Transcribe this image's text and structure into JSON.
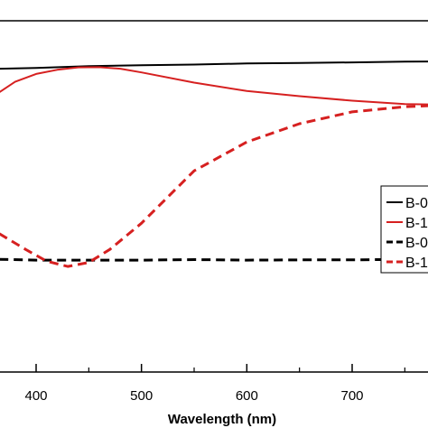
{
  "chart_data": {
    "type": "line",
    "title": "",
    "xlabel": "Wavelength (nm)",
    "ylabel": "",
    "xlim": [
      365,
      842
    ],
    "ylim": [
      0,
      100
    ],
    "x_ticks": [
      400,
      500,
      600,
      700
    ],
    "grid": false,
    "legend_position": "right",
    "series": [
      {
        "name": "B-0",
        "color": "#000000",
        "style": "solid",
        "x": [
          365,
          400,
          450,
          500,
          550,
          600,
          650,
          700,
          750,
          780
        ],
        "y": [
          91,
          91.3,
          92,
          92.3,
          92.6,
          93,
          93.2,
          93.4,
          93.7,
          93.8
        ]
      },
      {
        "name": "B-1",
        "color": "#d62020",
        "style": "solid",
        "x": [
          365,
          380,
          400,
          420,
          440,
          460,
          480,
          500,
          550,
          600,
          650,
          700,
          750,
          780
        ],
        "y": [
          82,
          86,
          89,
          90.6,
          91.5,
          91.6,
          91,
          89.6,
          85.7,
          82.5,
          80.5,
          78.8,
          77.5,
          77.3
        ]
      },
      {
        "name": "B-0",
        "color": "#000000",
        "style": "dashed",
        "x": [
          365,
          400,
          450,
          500,
          550,
          600,
          650,
          700,
          750,
          780
        ],
        "y": [
          18.2,
          17.9,
          17.9,
          17.9,
          18.1,
          17.9,
          18,
          18,
          18.2,
          18.2
        ]
      },
      {
        "name": "B-1",
        "color": "#d62020",
        "style": "dashed",
        "x": [
          365,
          390,
          410,
          430,
          450,
          470,
          500,
          550,
          600,
          650,
          700,
          750,
          780
        ],
        "y": [
          28,
          22,
          17.5,
          15.5,
          17,
          22,
          32,
          52,
          63,
          70,
          74.5,
          76.5,
          77
        ]
      }
    ],
    "legend_labels": [
      "B-0",
      "B-1",
      "B-0",
      "B-1"
    ]
  }
}
